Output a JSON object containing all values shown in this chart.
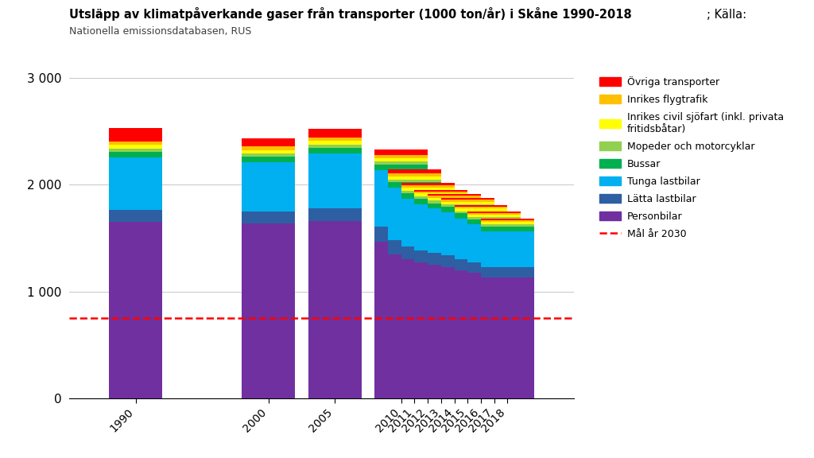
{
  "years": [
    "1990",
    "2000",
    "2005",
    "2010",
    "2011",
    "2012",
    "2013",
    "2014",
    "2015",
    "2016",
    "2017",
    "2018"
  ],
  "categories": [
    "Personbilar",
    "Lätta lastbilar",
    "Tunga lastbilar",
    "Bussar",
    "Mopeder och motorcyklar",
    "Inrikes civil sjöfart (inkl. privata\nfritidsbåtar)",
    "Inrikes flygtrafik",
    "Övriga transporter"
  ],
  "colors": [
    "#7030A0",
    "#2E5FA3",
    "#00B0F0",
    "#00B050",
    "#92D050",
    "#FFFF00",
    "#FFC000",
    "#FF0000"
  ],
  "data": {
    "Personbilar": [
      1650,
      1640,
      1660,
      1470,
      1350,
      1300,
      1270,
      1250,
      1230,
      1200,
      1175,
      1130
    ],
    "Lätta lastbilar": [
      115,
      110,
      120,
      135,
      130,
      120,
      115,
      112,
      108,
      104,
      100,
      96
    ],
    "Tunga lastbilar": [
      490,
      460,
      510,
      530,
      490,
      450,
      430,
      415,
      405,
      380,
      355,
      340
    ],
    "Bussar": [
      52,
      52,
      55,
      55,
      52,
      50,
      50,
      50,
      48,
      47,
      45,
      44
    ],
    "Mopeder och motorcyklar": [
      28,
      28,
      32,
      27,
      26,
      24,
      24,
      23,
      23,
      22,
      21,
      20
    ],
    "Inrikes civil sjöfart (inkl. privata\nfritidsbåtar)": [
      36,
      36,
      36,
      32,
      31,
      29,
      28,
      28,
      27,
      26,
      25,
      24
    ],
    "Inrikes flygtrafik": [
      32,
      32,
      32,
      30,
      27,
      22,
      20,
      20,
      18,
      17,
      16,
      15
    ],
    "Övriga transporter": [
      130,
      75,
      75,
      50,
      40,
      20,
      17,
      16,
      14,
      13,
      13,
      12
    ]
  },
  "maal_line": 750,
  "ylim": [
    0,
    3000
  ],
  "ytick_values": [
    0,
    1000,
    2000,
    3000
  ],
  "ytick_labels": [
    "0",
    "1 000",
    "2 000",
    "3 000"
  ],
  "title_bold": "Utsläpp av klimatpåverkande gaser från transporter (1000 ton/år) i Skåne 1990-2018",
  "title_suffix": "; Källa:",
  "subtitle": "Nationella emissionsdatabasen, RUS",
  "background_color": "#FFFFFF",
  "maal_label": "Mål år 2030",
  "legend_order": [
    "Övriga transporter",
    "Inrikes flygtrafik",
    "Inrikes civil sjöfart (inkl. privata\nfritidsbåtar)",
    "Mopeder och motorcyklar",
    "Bussar",
    "Tunga lastbilar",
    "Lätta lastbilar",
    "Personbilar"
  ],
  "legend_colors_order": [
    "#FF0000",
    "#FFC000",
    "#FFFF00",
    "#92D050",
    "#00B050",
    "#00B0F0",
    "#2E5FA3",
    "#7030A0"
  ]
}
